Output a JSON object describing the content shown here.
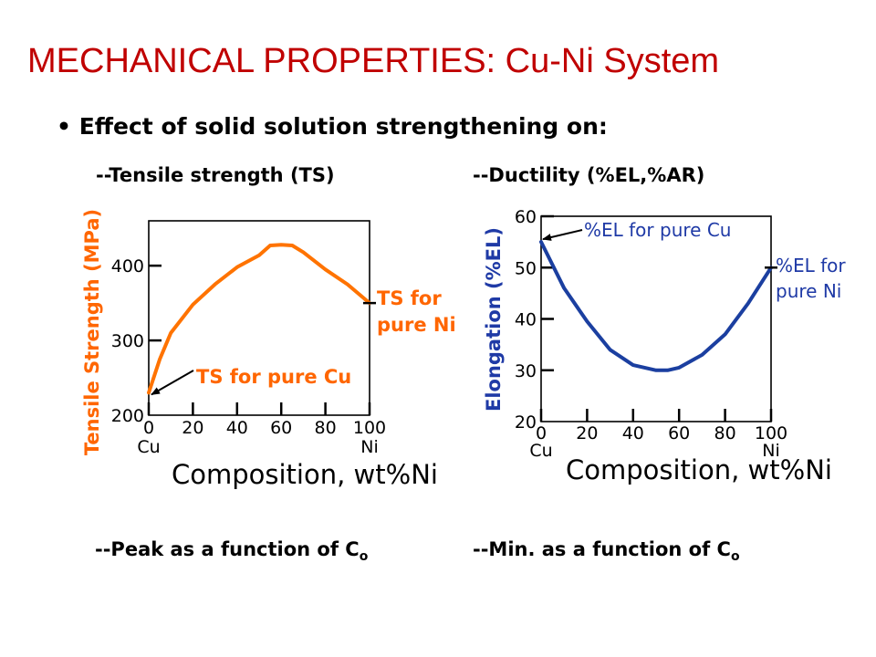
{
  "slide": {
    "title": "MECHANICAL PROPERTIES: Cu-Ni System",
    "bullet_mark": "•",
    "bullet_text": "Effect of solid solution strengthening on:",
    "left_heading": "--Tensile strength (TS)",
    "right_heading": "--Ductility (%EL,%AR)",
    "left_footer_text": "--Peak as a function of C",
    "left_footer_sub": "o",
    "right_footer_text": "--Min. as a function of C",
    "right_footer_sub": "o"
  },
  "colors": {
    "title": "#c00000",
    "ts_curve": "#ff7300",
    "ts_label": "#ff6600",
    "el_curve": "#1b3fa0",
    "el_label": "#1f3aa6"
  },
  "chart_data": [
    {
      "type": "line",
      "xlabel": "Composition, wt%Ni",
      "ylabel": "Tensile Strength (MPa)",
      "x_ticks": [
        "0",
        "20",
        "40",
        "60",
        "80",
        "100"
      ],
      "x_end_labels": [
        "Cu",
        "Ni"
      ],
      "y_ticks": [
        "200",
        "300",
        "400"
      ],
      "xlim": [
        0,
        100
      ],
      "ylim": [
        200,
        460
      ],
      "series": [
        {
          "x": [
            0,
            5,
            10,
            20,
            30,
            40,
            50,
            55,
            60,
            65,
            70,
            80,
            90,
            100
          ],
          "y": [
            230,
            275,
            310,
            348,
            375,
            398,
            414,
            427,
            428,
            427,
            418,
            395,
            375,
            350
          ]
        }
      ],
      "annotations": [
        {
          "text": "TS for pure Cu",
          "x": 0,
          "y": 230
        },
        {
          "text": "TS for pure Ni",
          "lines": [
            "TS for",
            "pure Ni"
          ],
          "x": 100,
          "y": 350
        }
      ],
      "grid": false
    },
    {
      "type": "line",
      "xlabel": "Composition, wt%Ni",
      "ylabel": "Elongation (%EL)",
      "x_ticks": [
        "0",
        "20",
        "40",
        "60",
        "80",
        "100"
      ],
      "x_end_labels": [
        "Cu",
        "Ni"
      ],
      "y_ticks": [
        "20",
        "30",
        "40",
        "50",
        "60"
      ],
      "xlim": [
        0,
        100
      ],
      "ylim": [
        20,
        60
      ],
      "series": [
        {
          "x": [
            0,
            10,
            20,
            30,
            40,
            50,
            55,
            60,
            70,
            80,
            90,
            100
          ],
          "y": [
            55,
            46,
            39.5,
            34,
            31,
            30,
            30,
            30.5,
            33,
            37,
            43,
            50
          ]
        }
      ],
      "annotations": [
        {
          "text": "%EL for pure Cu",
          "x": 0,
          "y": 55
        },
        {
          "text": "%EL for pure Ni",
          "lines": [
            "%EL for",
            "pure Ni"
          ],
          "x": 100,
          "y": 50
        }
      ],
      "grid": false
    }
  ]
}
